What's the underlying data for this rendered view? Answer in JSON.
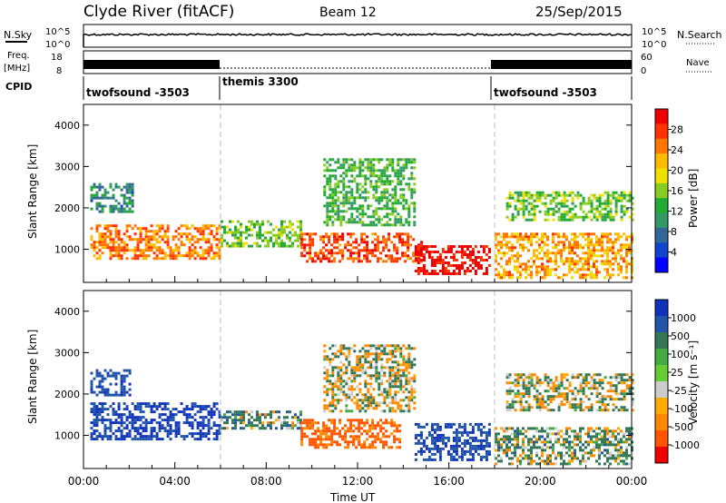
{
  "header": {
    "title": "Clyde River (fitACF)",
    "beam": "Beam 12",
    "date": "25/Sep/2015"
  },
  "noise_panel": {
    "left_label": "N.Sky",
    "right_label": "N.Search",
    "left_ticks": [
      "10^5",
      "10^0"
    ],
    "right_ticks": [
      "10^5",
      "10^0"
    ]
  },
  "freq_panel": {
    "left_label_1": "Freq.",
    "left_label_2": "[MHz]",
    "right_label": "Nave",
    "left_ticks": [
      "18",
      "8"
    ],
    "right_ticks": [
      "60",
      "0"
    ]
  },
  "cpid": {
    "label": "CPID",
    "segments": [
      {
        "name": "twofsound -3503",
        "start": 0,
        "end": 6
      },
      {
        "name": "themis 3300",
        "start": 6,
        "end": 18
      },
      {
        "name": "twofsound -3503",
        "start": 18,
        "end": 24
      }
    ]
  },
  "power_colorbar": {
    "label": "Power [dB]",
    "ticks": [
      "28",
      "24",
      "20",
      "16",
      "12",
      "8",
      "4"
    ],
    "colors": [
      "#ee0000",
      "#ff3300",
      "#ff7700",
      "#ffbb00",
      "#f0e000",
      "#88cc22",
      "#22aa33",
      "#339966",
      "#336699",
      "#1144cc",
      "#0000ff"
    ]
  },
  "velocity_colorbar": {
    "label": "Velocity [m s⁻¹]",
    "ticks": [
      "1000",
      "500",
      "100",
      "25",
      "-25",
      "-100",
      "-500",
      "-1000"
    ],
    "colors": [
      "#1133bb",
      "#2255aa",
      "#337755",
      "#44aa44",
      "#66cc33",
      "#cccccc",
      "#ffaa00",
      "#ff8800",
      "#ff5500",
      "#ee0000"
    ]
  },
  "chart_data": [
    {
      "type": "heatmap",
      "name": "power",
      "ylabel": "Slant Range [km]",
      "ylim": [
        200,
        4500
      ],
      "xlim": [
        0,
        24
      ],
      "yticks": [
        1000,
        2000,
        3000,
        4000
      ],
      "ytick_labels": [
        "1000",
        "2000",
        "3000",
        "4000"
      ],
      "bands": [
        {
          "x0": 0.3,
          "x1": 6.0,
          "y0": 800,
          "y1": 1600,
          "level": 24
        },
        {
          "x0": 0.3,
          "x1": 2.2,
          "y0": 1900,
          "y1": 2600,
          "level": 8
        },
        {
          "x0": 6.0,
          "x1": 9.5,
          "y0": 1100,
          "y1": 1700,
          "level": 14
        },
        {
          "x0": 9.5,
          "x1": 14.8,
          "y0": 700,
          "y1": 1400,
          "level": 26
        },
        {
          "x0": 10.5,
          "x1": 14.5,
          "y0": 1600,
          "y1": 3200,
          "level": 12
        },
        {
          "x0": 14.5,
          "x1": 17.8,
          "y0": 400,
          "y1": 1100,
          "level": 30
        },
        {
          "x0": 18.0,
          "x1": 24.0,
          "y0": 300,
          "y1": 1400,
          "level": 22
        },
        {
          "x0": 18.5,
          "x1": 24.0,
          "y0": 1700,
          "y1": 2400,
          "level": 14
        }
      ]
    },
    {
      "type": "heatmap",
      "name": "velocity",
      "ylabel": "Slant Range [km]",
      "xlabel": "Time UT",
      "ylim": [
        200,
        4500
      ],
      "xlim": [
        0,
        24
      ],
      "xticks": [
        0,
        4,
        8,
        12,
        16,
        20,
        24
      ],
      "xtick_labels": [
        "00:00",
        "04:00",
        "08:00",
        "12:00",
        "16:00",
        "20:00",
        "00:00"
      ],
      "yticks": [
        1000,
        2000,
        3000,
        4000
      ],
      "ytick_labels": [
        "1000",
        "2000",
        "3000",
        "4000"
      ],
      "bands": [
        {
          "x0": 0.3,
          "x1": 6.0,
          "y0": 900,
          "y1": 1800,
          "velocity": 800
        },
        {
          "x0": 0.3,
          "x1": 2.0,
          "y0": 2000,
          "y1": 2600,
          "velocity": 600
        },
        {
          "x0": 6.0,
          "x1": 9.5,
          "y0": 1200,
          "y1": 1600,
          "velocity": 150
        },
        {
          "x0": 9.5,
          "x1": 13.8,
          "y0": 700,
          "y1": 1400,
          "velocity": -400
        },
        {
          "x0": 10.5,
          "x1": 14.5,
          "y0": 1600,
          "y1": 3200,
          "velocity": 0
        },
        {
          "x0": 14.5,
          "x1": 17.8,
          "y0": 400,
          "y1": 1300,
          "velocity": 700
        },
        {
          "x0": 18.0,
          "x1": 24.0,
          "y0": 300,
          "y1": 1200,
          "velocity": 100
        },
        {
          "x0": 18.5,
          "x1": 24.0,
          "y0": 1600,
          "y1": 2500,
          "velocity": 20
        }
      ]
    }
  ]
}
